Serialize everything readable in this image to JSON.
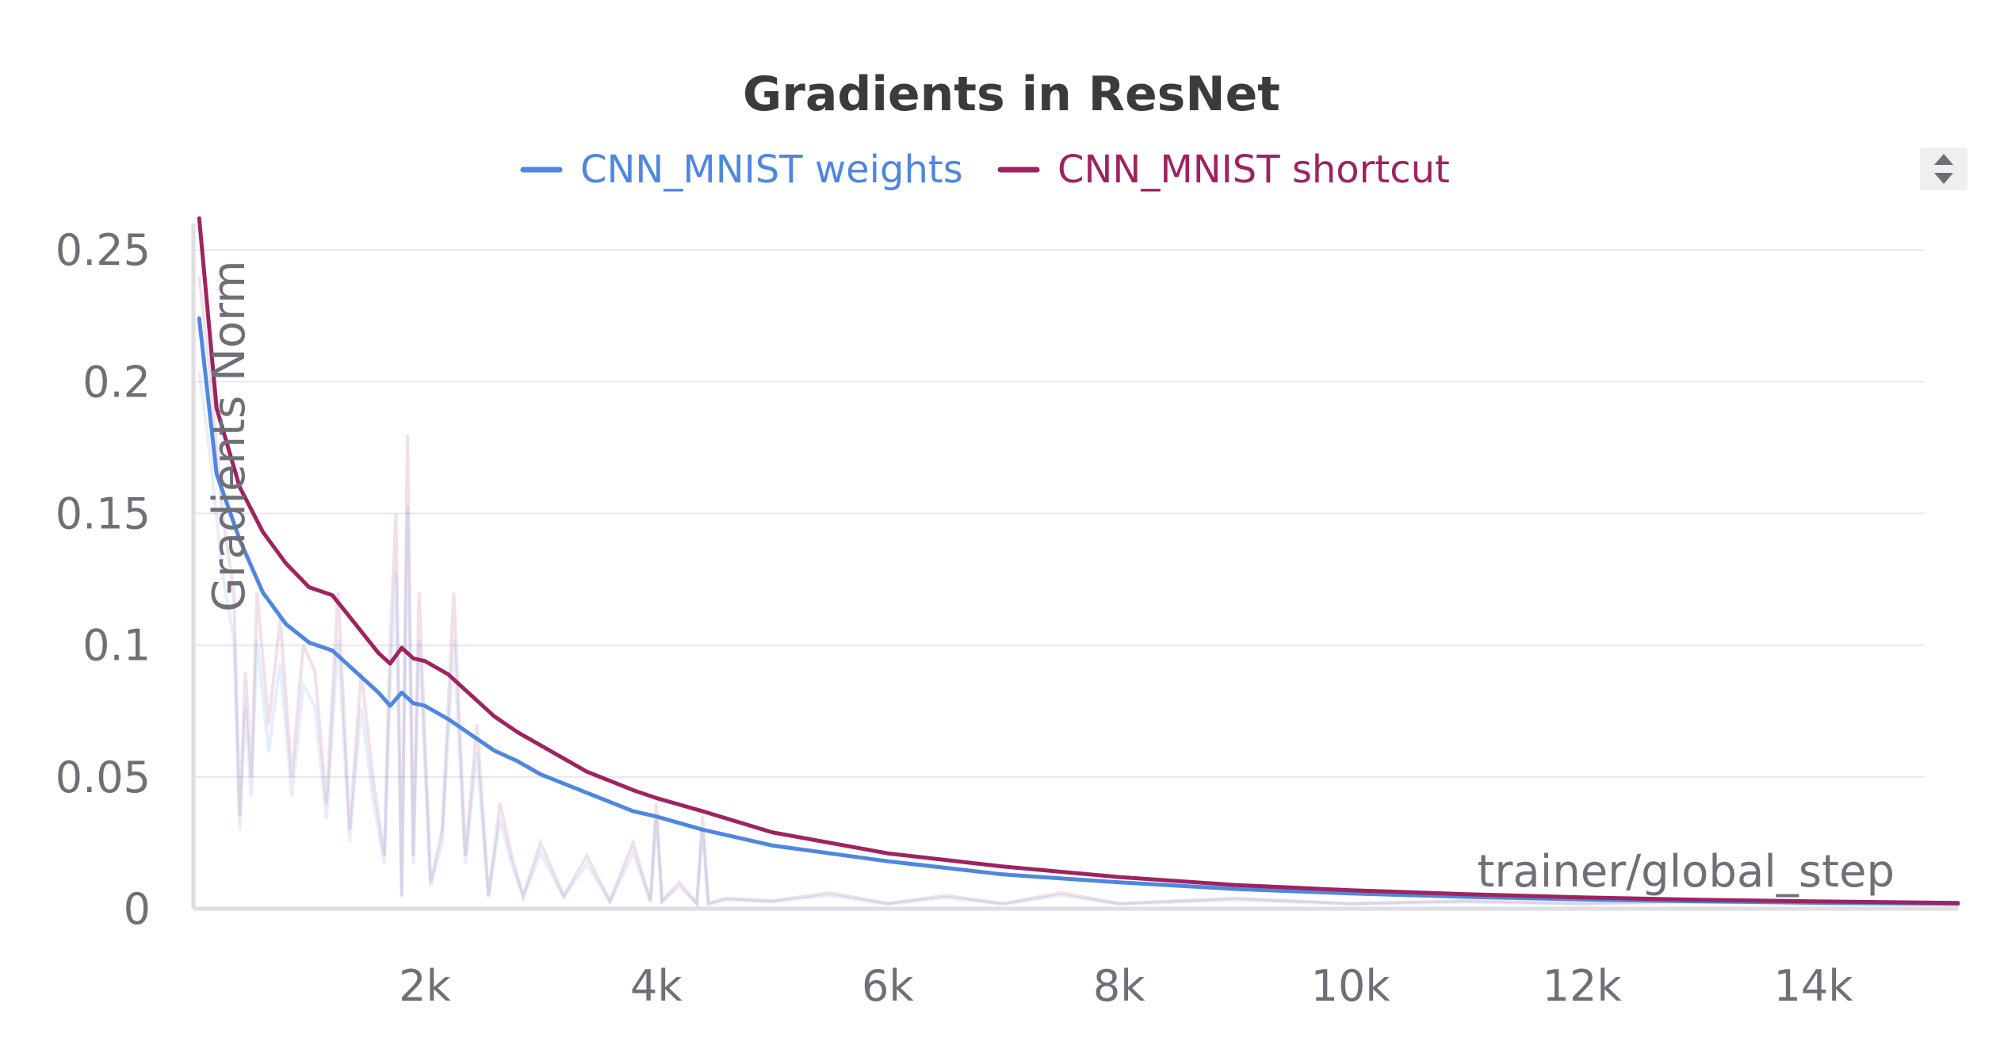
{
  "chart_data": {
    "type": "line",
    "title": "Gradients in ResNet",
    "xlabel": "trainer/global_step",
    "ylabel": "Gradients Norm",
    "xlim": [
      0,
      15250
    ],
    "ylim": [
      0,
      0.26
    ],
    "x_ticks": [
      2000,
      4000,
      6000,
      8000,
      10000,
      12000,
      14000
    ],
    "x_tick_labels": [
      "2k",
      "4k",
      "6k",
      "8k",
      "10k",
      "12k",
      "14k"
    ],
    "y_ticks": [
      0,
      0.05,
      0.1,
      0.15,
      0.2,
      0.25
    ],
    "y_tick_labels": [
      "0",
      "0.05",
      "0.1",
      "0.15",
      "0.2",
      "0.25"
    ],
    "grid": true,
    "legend_position": "top-center",
    "x": [
      50,
      200,
      400,
      600,
      800,
      1000,
      1200,
      1400,
      1600,
      1700,
      1800,
      1900,
      2000,
      2200,
      2400,
      2600,
      2800,
      3000,
      3400,
      3800,
      4000,
      4400,
      5000,
      6000,
      7000,
      8000,
      9000,
      10000,
      11000,
      12000,
      13000,
      14000,
      15000,
      15250
    ],
    "series": [
      {
        "name": "CNN_MNIST weights",
        "color": "#4f87de",
        "values": [
          0.224,
          0.165,
          0.14,
          0.12,
          0.108,
          0.101,
          0.098,
          0.09,
          0.082,
          0.077,
          0.082,
          0.078,
          0.077,
          0.072,
          0.066,
          0.06,
          0.056,
          0.051,
          0.044,
          0.037,
          0.035,
          0.03,
          0.024,
          0.018,
          0.013,
          0.01,
          0.0075,
          0.0058,
          0.0045,
          0.0035,
          0.0028,
          0.0023,
          0.0019,
          0.0018
        ]
      },
      {
        "name": "CNN_MNIST shortcut",
        "color": "#9e2360",
        "values": [
          0.262,
          0.19,
          0.16,
          0.143,
          0.131,
          0.122,
          0.119,
          0.108,
          0.097,
          0.093,
          0.099,
          0.095,
          0.094,
          0.089,
          0.081,
          0.073,
          0.067,
          0.062,
          0.052,
          0.045,
          0.042,
          0.037,
          0.029,
          0.021,
          0.016,
          0.012,
          0.009,
          0.007,
          0.0055,
          0.0043,
          0.0034,
          0.0028,
          0.0023,
          0.0022
        ]
      }
    ],
    "raw_x": [
      50,
      150,
      250,
      350,
      400,
      450,
      500,
      550,
      650,
      750,
      850,
      950,
      1050,
      1150,
      1250,
      1350,
      1450,
      1550,
      1650,
      1700,
      1750,
      1800,
      1850,
      1900,
      1950,
      2050,
      2150,
      2250,
      2350,
      2450,
      2550,
      2650,
      2750,
      2850,
      3000,
      3200,
      3400,
      3600,
      3800,
      3950,
      4000,
      4050,
      4200,
      4350,
      4400,
      4450,
      4600,
      5000,
      5500,
      6000,
      6500,
      7000,
      7500,
      8000,
      9000,
      10000,
      11000,
      12000,
      13000,
      14000,
      15000
    ],
    "raw_values": [
      0.24,
      0.2,
      0.15,
      0.12,
      0.035,
      0.09,
      0.05,
      0.12,
      0.07,
      0.11,
      0.05,
      0.1,
      0.09,
      0.04,
      0.12,
      0.03,
      0.09,
      0.05,
      0.02,
      0.1,
      0.15,
      0.005,
      0.18,
      0.02,
      0.12,
      0.01,
      0.03,
      0.12,
      0.02,
      0.07,
      0.005,
      0.04,
      0.02,
      0.005,
      0.025,
      0.005,
      0.02,
      0.003,
      0.025,
      0.003,
      0.04,
      0.003,
      0.01,
      0.002,
      0.035,
      0.002,
      0.004,
      0.003,
      0.006,
      0.002,
      0.005,
      0.002,
      0.006,
      0.002,
      0.004,
      0.002,
      0.003,
      0.002,
      0.003,
      0.002,
      0.002
    ]
  }
}
